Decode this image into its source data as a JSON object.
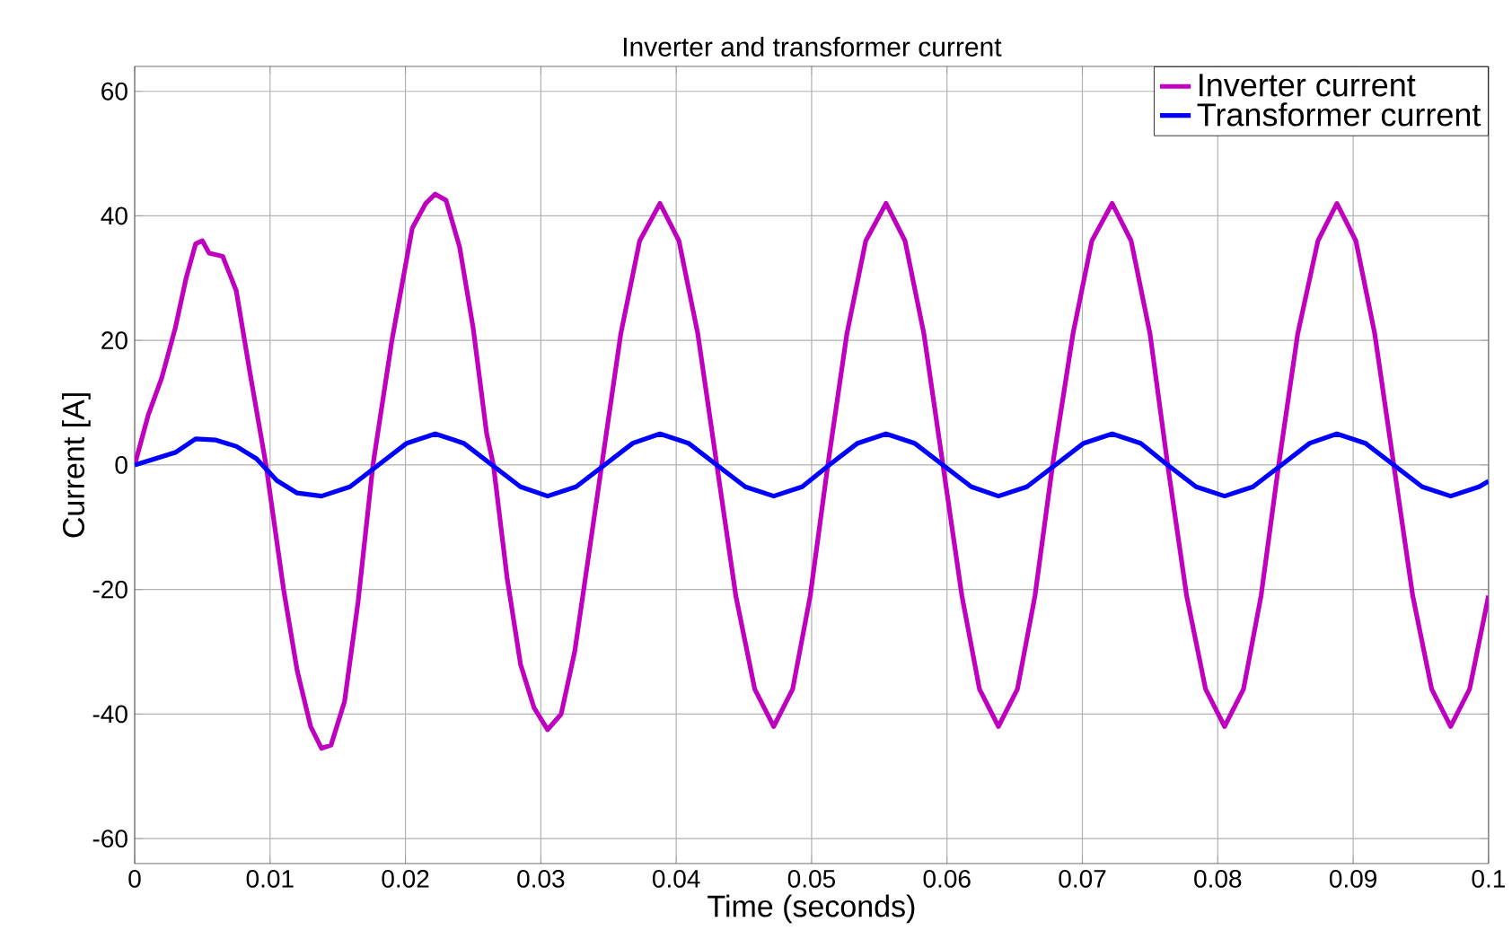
{
  "chart_data": {
    "type": "line",
    "title": "Inverter and transformer current",
    "xlabel": "Time (seconds)",
    "ylabel": "Current [A]",
    "xlim": [
      0,
      0.1
    ],
    "ylim": [
      -64,
      64
    ],
    "xticks": [
      0,
      0.01,
      0.02,
      0.03,
      0.04,
      0.05,
      0.06,
      0.07,
      0.08,
      0.09,
      0.1
    ],
    "yticks": [
      -60,
      -40,
      -20,
      0,
      20,
      40,
      60
    ],
    "grid": true,
    "legend": "top right",
    "marker": "none",
    "line_style": "solid",
    "series": [
      {
        "name": "Inverter current",
        "color": "#bf00bf",
        "x": [
          0,
          0.001,
          0.002,
          0.003,
          0.0038,
          0.0045,
          0.005,
          0.0055,
          0.0065,
          0.0075,
          0.0085,
          0.0097,
          0.011,
          0.012,
          0.013,
          0.0138,
          0.0145,
          0.0155,
          0.0165,
          0.0176,
          0.019,
          0.0205,
          0.0215,
          0.0222,
          0.023,
          0.024,
          0.025,
          0.026,
          0.0265,
          0.0275,
          0.0285,
          0.0295,
          0.0305,
          0.0315,
          0.0325,
          0.0335,
          0.0345,
          0.0359,
          0.0373,
          0.0388,
          0.0402,
          0.0416,
          0.043,
          0.0444,
          0.0458,
          0.0472,
          0.0486,
          0.0499,
          0.0512,
          0.0526,
          0.054,
          0.0555,
          0.0569,
          0.0583,
          0.0597,
          0.0611,
          0.0624,
          0.0638,
          0.0652,
          0.0665,
          0.0678,
          0.0693,
          0.0707,
          0.0722,
          0.0736,
          0.075,
          0.0763,
          0.0777,
          0.0791,
          0.0805,
          0.0819,
          0.0832,
          0.0845,
          0.0859,
          0.0874,
          0.0888,
          0.0902,
          0.0916,
          0.093,
          0.0944,
          0.0958,
          0.0972,
          0.0986,
          0.1
        ],
        "values": [
          0,
          8,
          14,
          22,
          30,
          35.5,
          36,
          34,
          33.5,
          28,
          15,
          0,
          -20,
          -33,
          -42,
          -45.5,
          -45,
          -38,
          -22,
          0,
          20,
          38,
          42,
          43.5,
          42.5,
          35,
          22,
          5,
          0,
          -18,
          -32,
          -39,
          -42.5,
          -40,
          -30,
          -15,
          0,
          21,
          36,
          42,
          36,
          21,
          0,
          -21,
          -36,
          -42,
          -36,
          -21,
          0,
          21,
          36,
          42,
          36,
          21,
          0,
          -21,
          -36,
          -42,
          -36,
          -21,
          0,
          21,
          36,
          42,
          36,
          21,
          0,
          -21,
          -36,
          -42,
          -36,
          -21,
          0,
          21,
          36,
          42,
          36,
          21,
          0,
          -21,
          -36,
          -42,
          -36,
          -21
        ]
      },
      {
        "name": "Transformer current",
        "color": "#0000ff",
        "x": [
          0,
          0.003,
          0.0045,
          0.006,
          0.0075,
          0.009,
          0.0105,
          0.012,
          0.0138,
          0.0159,
          0.018,
          0.0201,
          0.0222,
          0.0243,
          0.0264,
          0.0285,
          0.0305,
          0.0326,
          0.0347,
          0.0368,
          0.0388,
          0.0409,
          0.043,
          0.0451,
          0.0472,
          0.0493,
          0.0513,
          0.0534,
          0.0555,
          0.0576,
          0.0597,
          0.0618,
          0.0638,
          0.0659,
          0.068,
          0.0701,
          0.0722,
          0.0743,
          0.0763,
          0.0784,
          0.0805,
          0.0826,
          0.0847,
          0.0868,
          0.0888,
          0.0909,
          0.093,
          0.0951,
          0.0972,
          0.0993,
          0.1
        ],
        "values": [
          0,
          2,
          4.2,
          4,
          3,
          1,
          -2.5,
          -4.5,
          -5,
          -3.5,
          0,
          3.5,
          5,
          3.5,
          0,
          -3.5,
          -5,
          -3.5,
          0,
          3.5,
          5,
          3.5,
          0,
          -3.5,
          -5,
          -3.5,
          0,
          3.5,
          5,
          3.5,
          0,
          -3.5,
          -5,
          -3.5,
          0,
          3.5,
          5,
          3.5,
          0,
          -3.5,
          -5,
          -3.5,
          0,
          3.5,
          5,
          3.5,
          0,
          -3.5,
          -5,
          -3.5,
          -2.6
        ]
      }
    ]
  }
}
